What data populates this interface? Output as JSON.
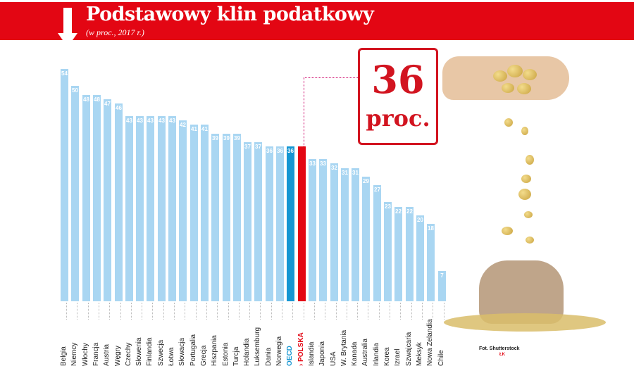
{
  "header": {
    "title": "Podstawowy klin podatkowy",
    "subtitle": "(w proc., 2017 r.)",
    "arrow_icon": "down-arrow"
  },
  "callout": {
    "value": "36",
    "unit": "proc."
  },
  "credit": {
    "photo": "Fot. Shutterstock",
    "badge": "ŁK"
  },
  "colors": {
    "banner": "#e30613",
    "bar": "#a9d6f2",
    "oecd": "#1596d2",
    "polska": "#e30613"
  },
  "chart_data": {
    "type": "bar",
    "title": "Podstawowy klin podatkowy",
    "subtitle": "(w proc., 2017 r.)",
    "xlabel": "",
    "ylabel": "",
    "ylim": [
      0,
      54
    ],
    "grid": false,
    "categories": [
      "Belgia",
      "Niemcy",
      "Włochy",
      "Francja",
      "Austria",
      "Węgry",
      "Czechy",
      "Słowenia",
      "Finlandia",
      "Szwecja",
      "Łotwa",
      "Słowacja",
      "Portugalia",
      "Grecja",
      "Hiszpania",
      "Estonia",
      "Turcja",
      "Holandia",
      "Luksemburg",
      "Dania",
      "Norwegia",
      "OECD",
      "POLSKA",
      "Islandia",
      "Japonia",
      "USA",
      "W. Brytania",
      "Kanada",
      "Australia",
      "Irlandia",
      "Korea",
      "Izrael",
      "Szwajcaria",
      "Meksyk",
      "Nowa Zelandia",
      "Chile"
    ],
    "values": [
      54,
      50,
      48,
      48,
      47,
      46,
      43,
      43,
      43,
      43,
      43,
      42,
      41,
      41,
      39,
      39,
      39,
      37,
      37,
      36,
      36,
      36,
      36,
      33,
      33,
      32,
      31,
      31,
      29,
      27,
      23,
      22,
      22,
      20,
      18,
      7
    ],
    "value_labels": [
      "54",
      "50",
      "48",
      "48",
      "47",
      "46",
      "43",
      "43",
      "43",
      "43",
      "43",
      "42",
      "41",
      "41",
      "39",
      "39",
      "39",
      "37",
      "37",
      "36",
      "36",
      "36",
      "",
      "33",
      "33",
      "32",
      "31",
      "31",
      "29",
      "27",
      "23",
      "22",
      "22",
      "20",
      "18",
      "7"
    ],
    "highlight": {
      "OECD": "#1596d2",
      "POLSKA": "#e30613"
    },
    "annotations": [
      {
        "target": "POLSKA",
        "text": "36 proc."
      }
    ]
  }
}
